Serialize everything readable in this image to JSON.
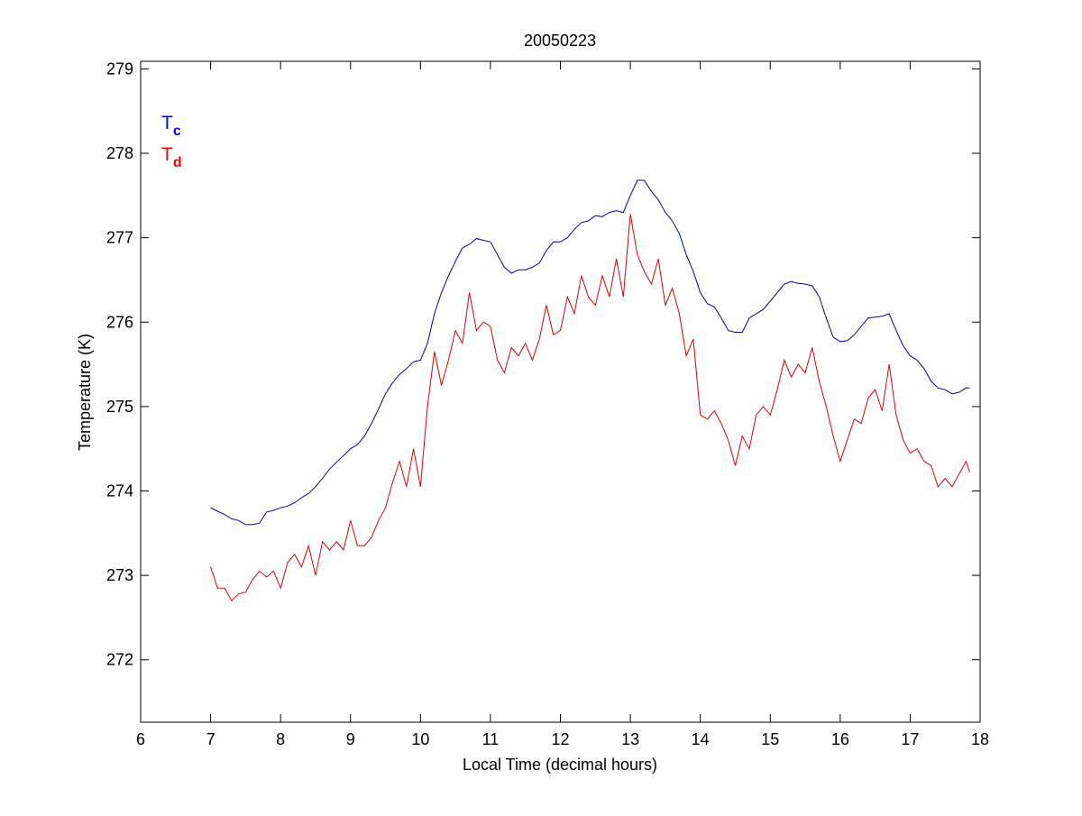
{
  "chart_data": {
    "type": "line",
    "title": "20050223",
    "xlabel": "Local Time (decimal hours)",
    "ylabel": "Temperature (K)",
    "xlim": [
      6,
      18
    ],
    "ylim": [
      271.26,
      279.09
    ],
    "xticks": [
      6,
      7,
      8,
      9,
      10,
      11,
      12,
      13,
      14,
      15,
      16,
      17,
      18
    ],
    "yticks": [
      272,
      273,
      274,
      275,
      276,
      277,
      278,
      279
    ],
    "grid": false,
    "legend_placement": "top-left",
    "x": [
      7.0,
      7.1,
      7.2,
      7.3,
      7.4,
      7.5,
      7.6,
      7.7,
      7.8,
      7.9,
      8.0,
      8.1,
      8.2,
      8.3,
      8.4,
      8.5,
      8.6,
      8.7,
      8.8,
      8.9,
      9.0,
      9.1,
      9.2,
      9.3,
      9.4,
      9.5,
      9.6,
      9.7,
      9.8,
      9.9,
      10.0,
      10.1,
      10.2,
      10.3,
      10.4,
      10.5,
      10.6,
      10.7,
      10.8,
      10.9,
      11.0,
      11.1,
      11.2,
      11.3,
      11.4,
      11.5,
      11.6,
      11.7,
      11.8,
      11.9,
      12.0,
      12.1,
      12.2,
      12.3,
      12.4,
      12.5,
      12.6,
      12.7,
      12.8,
      12.9,
      13.0,
      13.1,
      13.2,
      13.3,
      13.4,
      13.5,
      13.6,
      13.7,
      13.8,
      13.9,
      14.0,
      14.1,
      14.2,
      14.3,
      14.4,
      14.5,
      14.6,
      14.7,
      14.8,
      14.9,
      15.0,
      15.1,
      15.2,
      15.3,
      15.4,
      15.5,
      15.6,
      15.7,
      15.8,
      15.9,
      16.0,
      16.1,
      16.2,
      16.3,
      16.4,
      16.5,
      16.6,
      16.7,
      16.8,
      16.9,
      17.0,
      17.1,
      17.2,
      17.3,
      17.4,
      17.5,
      17.6,
      17.7,
      17.8,
      17.85
    ],
    "series": [
      {
        "name": "T",
        "subscript": "c",
        "color": "#0000ff",
        "values": [
          273.8,
          273.76,
          273.72,
          273.67,
          273.65,
          273.6,
          273.6,
          273.62,
          273.75,
          273.77,
          273.8,
          273.82,
          273.86,
          273.92,
          273.97,
          274.05,
          274.15,
          274.26,
          274.34,
          274.42,
          274.5,
          274.55,
          274.65,
          274.8,
          274.97,
          275.15,
          275.28,
          275.38,
          275.45,
          275.53,
          275.55,
          275.75,
          276.1,
          276.35,
          276.55,
          276.72,
          276.88,
          276.92,
          276.99,
          276.97,
          276.95,
          276.8,
          276.65,
          276.58,
          276.62,
          276.62,
          276.65,
          276.7,
          276.85,
          276.95,
          276.95,
          277.0,
          277.1,
          277.18,
          277.2,
          277.26,
          277.25,
          277.3,
          277.32,
          277.3,
          277.5,
          277.68,
          277.68,
          277.55,
          277.45,
          277.3,
          277.2,
          277.05,
          276.8,
          276.6,
          276.35,
          276.22,
          276.18,
          276.05,
          275.9,
          275.88,
          275.88,
          276.05,
          276.1,
          276.15,
          276.25,
          276.35,
          276.45,
          276.48,
          276.46,
          276.45,
          276.43,
          276.3,
          276.05,
          275.82,
          275.77,
          275.78,
          275.85,
          275.95,
          276.05,
          276.06,
          276.07,
          276.1,
          275.9,
          275.72,
          275.6,
          275.55,
          275.45,
          275.3,
          275.22,
          275.2,
          275.15,
          275.17,
          275.22,
          275.22
        ]
      },
      {
        "name": "T",
        "subscript": "d",
        "color": "#ff0000",
        "values": [
          273.1,
          272.85,
          272.85,
          272.7,
          272.78,
          272.8,
          272.95,
          273.05,
          272.98,
          273.05,
          272.85,
          273.15,
          273.25,
          273.1,
          273.35,
          273.0,
          273.4,
          273.3,
          273.4,
          273.3,
          273.65,
          273.35,
          273.35,
          273.45,
          273.65,
          273.8,
          274.1,
          274.35,
          274.05,
          274.5,
          274.05,
          275.0,
          275.65,
          275.25,
          275.55,
          275.9,
          275.75,
          276.35,
          275.9,
          276.0,
          275.95,
          275.55,
          275.4,
          275.7,
          275.6,
          275.75,
          275.55,
          275.8,
          276.2,
          275.85,
          275.9,
          276.3,
          276.1,
          276.55,
          276.3,
          276.2,
          276.55,
          276.3,
          276.75,
          276.3,
          277.28,
          276.8,
          276.6,
          276.45,
          276.75,
          276.2,
          276.4,
          276.1,
          275.6,
          275.8,
          274.9,
          274.85,
          274.95,
          274.8,
          274.6,
          274.3,
          274.65,
          274.5,
          274.9,
          275.0,
          274.9,
          275.2,
          275.55,
          275.35,
          275.5,
          275.4,
          275.7,
          275.3,
          275.0,
          274.65,
          274.35,
          274.6,
          274.85,
          274.8,
          275.1,
          275.2,
          274.95,
          275.5,
          274.9,
          274.6,
          274.45,
          274.5,
          274.35,
          274.3,
          274.05,
          274.15,
          274.05,
          274.2,
          274.35,
          274.22
        ]
      }
    ]
  }
}
